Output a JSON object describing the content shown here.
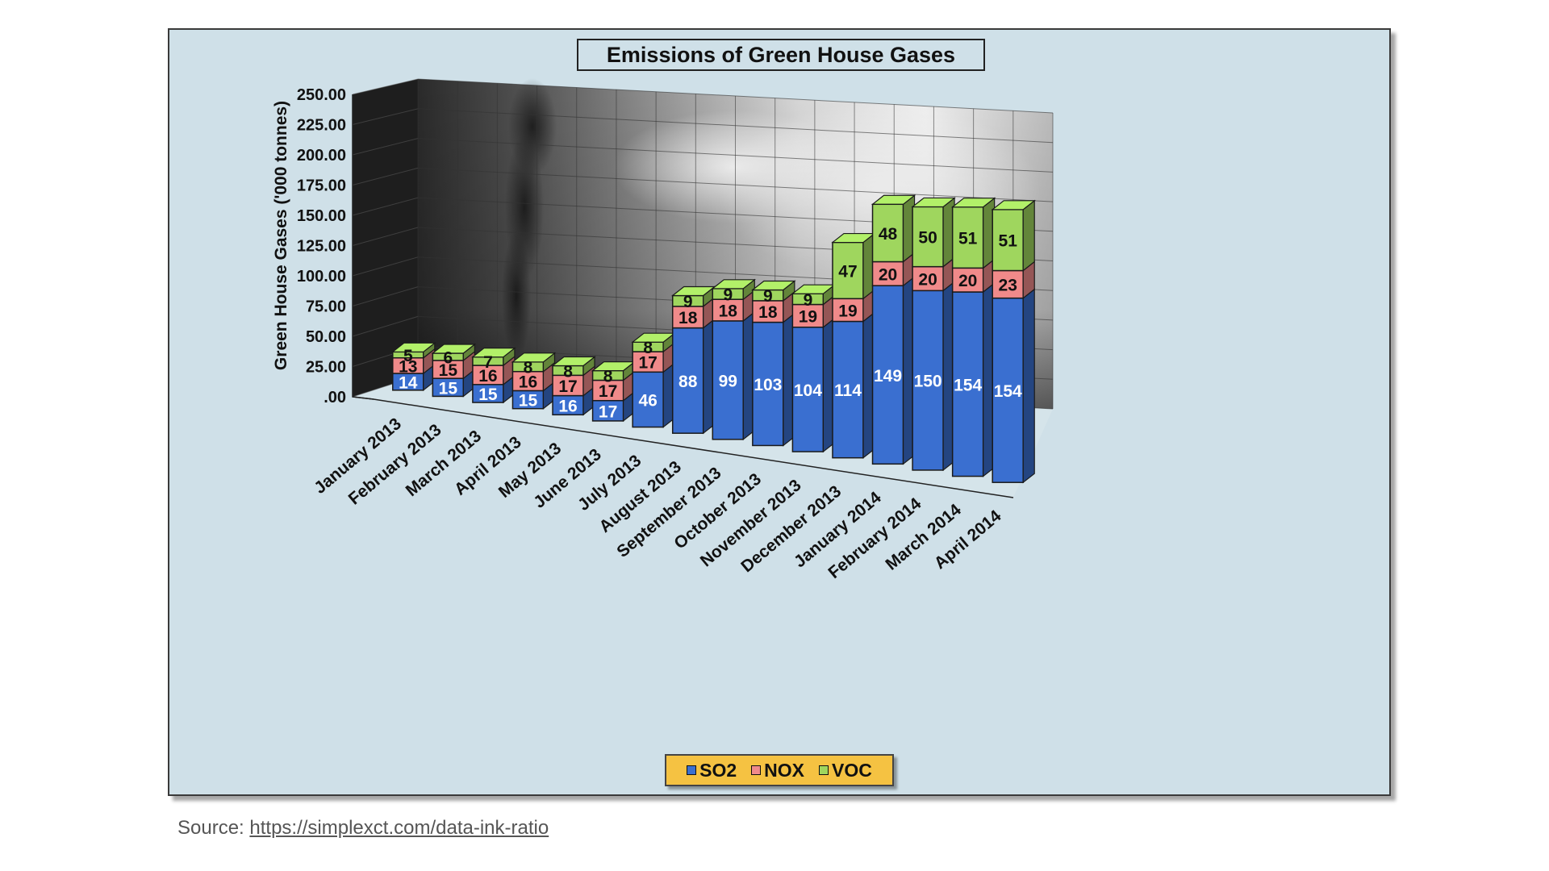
{
  "source": {
    "prefix": "Source: ",
    "link_text": "https://simplexct.com/data-ink-ratio"
  },
  "legend": [
    {
      "label": "SO2",
      "color": "#3a6fd0"
    },
    {
      "label": "NOX",
      "color": "#f08a8a"
    },
    {
      "label": "VOC",
      "color": "#9fd65e"
    }
  ],
  "colors": {
    "panel_background": "#cfe0e8",
    "legend_background": "#f5c242",
    "SO2": "#3a6fd0",
    "NOX": "#f08a8a",
    "VOC": "#9fd65e"
  },
  "chart_data": {
    "type": "bar",
    "stacked": true,
    "three_d": true,
    "title": "Emissions of Green House Gases",
    "xlabel": "",
    "ylabel": "Green House Gases ('000 tonnes)",
    "ylim": [
      0,
      250
    ],
    "yticks": [
      ".00",
      "25.00",
      "50.00",
      "75.00",
      "100.00",
      "125.00",
      "150.00",
      "175.00",
      "200.00",
      "225.00",
      "250.00"
    ],
    "grid": true,
    "legend_position": "bottom",
    "categories": [
      "January 2013",
      "February 2013",
      "March 2013",
      "April 2013",
      "May 2013",
      "June 2013",
      "July 2013",
      "August 2013",
      "September 2013",
      "October 2013",
      "November 2013",
      "December 2013",
      "January 2014",
      "February 2014",
      "March 2014",
      "April 2014"
    ],
    "series": [
      {
        "name": "SO2",
        "values": [
          14,
          15,
          15,
          15,
          16,
          17,
          46,
          88,
          99,
          103,
          104,
          114,
          149,
          150,
          154,
          154
        ]
      },
      {
        "name": "NOX",
        "values": [
          13,
          15,
          16,
          16,
          17,
          17,
          17,
          18,
          18,
          18,
          19,
          19,
          20,
          20,
          20,
          23
        ]
      },
      {
        "name": "VOC",
        "values": [
          5,
          6,
          7,
          8,
          8,
          8,
          8,
          9,
          9,
          9,
          9,
          47,
          48,
          50,
          51,
          51
        ]
      }
    ]
  }
}
